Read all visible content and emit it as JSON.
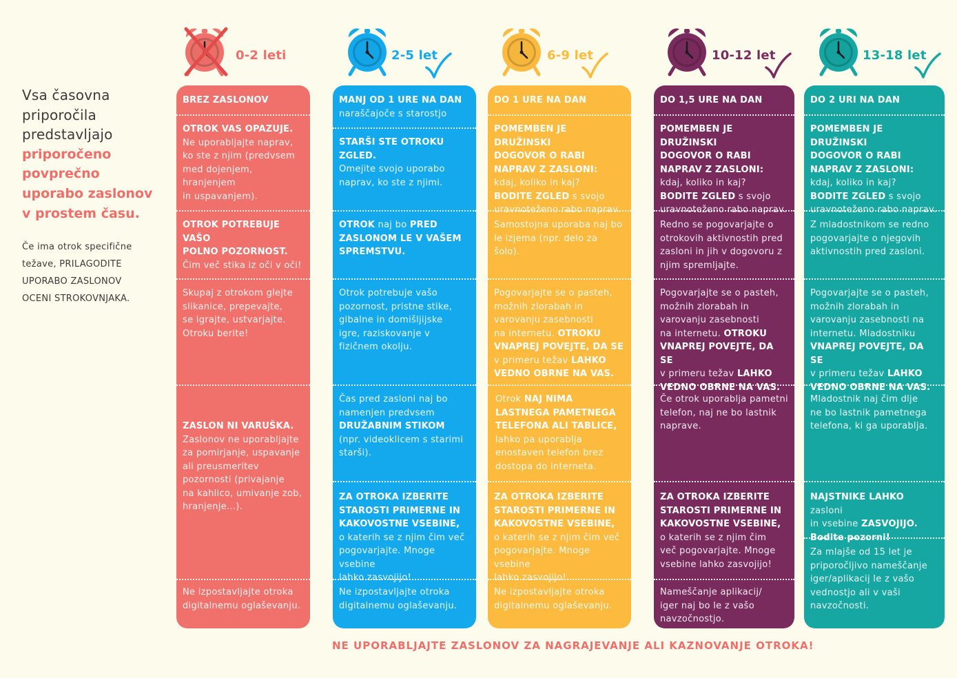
{
  "colors": {
    "red": "#f0716b",
    "blue": "#14a9ec",
    "yellow": "#fcbb3f",
    "purple": "#7a2b5e",
    "teal": "#16a7a2",
    "accent": "#ef6e6a"
  },
  "intro": {
    "lines": [
      "Vsa časovna",
      "priporočila",
      "predstavljajo"
    ],
    "highlight": [
      "priporočeno",
      "povprečno",
      "uporabo zaslonov",
      "v prostem času."
    ],
    "note": [
      "Če ima otrok specifične",
      "težave, PRILAGODITE",
      "UPORABO ZASLONOV",
      "OCENI STROKOVNJAKA."
    ]
  },
  "ages": [
    "0-2 leti",
    "2-5 let",
    "6-9 let",
    "10-12 let",
    "13-18 let"
  ],
  "icons": {
    "clock": "alarm-clock-icon",
    "check": "checkmark-icon",
    "cross": "cross-icon"
  },
  "columns": [
    {
      "sections": [
        {
          "lines": [
            {
              "b": "BREZ ZASLONOV"
            }
          ]
        },
        {
          "lines": [
            {
              "b": "OTROK VAS OPAZUJE."
            },
            {
              "t": "Ne uporabljajte naprav,"
            },
            {
              "t": "ko ste z njim (predvsem"
            },
            {
              "t": "med dojenjem, hranjenjem"
            },
            {
              "t": "in uspavanjem)."
            }
          ]
        },
        {
          "lines": [
            {
              "b": "OTROK POTREBUJE VAŠO"
            },
            {
              "b": "POLNO POZORNOST."
            },
            {
              "t": "Čim več stika iz oči v oči!"
            }
          ]
        },
        {
          "lines": [
            {
              "t": "Skupaj z otrokom glejte"
            },
            {
              "t": "slikanice, prepevajte,"
            },
            {
              "t": "se igrajte, ustvarjajte."
            },
            {
              "t": "Otroku berite!"
            }
          ]
        },
        {
          "lines": [
            {
              "b": "ZASLON NI VARUŠKA."
            },
            {
              "t": "Zaslonov ne uporabljajte"
            },
            {
              "t": "za pomirjanje, uspavanje"
            },
            {
              "t": "ali preusmeritev"
            },
            {
              "t": "pozornosti (privajanje"
            },
            {
              "t": "na kahlico, umivanje zob,"
            },
            {
              "t": "hranjenje...)."
            }
          ]
        },
        {
          "lines": [
            {
              "t": "Ne izpostavljajte otroka"
            },
            {
              "t": "digitalnemu oglaševanju."
            }
          ]
        }
      ]
    },
    {
      "sections": [
        {
          "lines": [
            {
              "b": "MANJ OD 1 URE NA DAN"
            },
            {
              "t": "naraščajoče s starostjo"
            }
          ]
        },
        {
          "lines": [
            {
              "b": "STARŠI STE OTROKU"
            },
            {
              "b": "ZGLED."
            },
            {
              "t": "Omejite svojo uporabo"
            },
            {
              "t": "naprav, ko ste z njimi."
            }
          ]
        },
        {
          "lines": [
            {
              "b": "OTROK",
              "t": " naj bo ",
              "b2": "PRED"
            },
            {
              "b": "ZASLONOM LE V VAŠEM"
            },
            {
              "b": "SPREMSTVU."
            }
          ]
        },
        {
          "lines": [
            {
              "t": "Otrok potrebuje vašo"
            },
            {
              "t": "pozornost, pristne stike,"
            },
            {
              "t": "gibalne in domišljijske"
            },
            {
              "t": "igre, raziskovanje v"
            },
            {
              "t": "fizičnem okolju."
            }
          ]
        },
        {
          "lines": [
            {
              "t": "Čas pred zasloni naj bo"
            },
            {
              "t": "namenjen predvsem"
            },
            {
              "b": "DRUŽABNIM STIKOM"
            },
            {
              "t": "(npr. videoklicem s starimi"
            },
            {
              "t": "starši)."
            }
          ]
        },
        {
          "lines": [
            {
              "b": "ZA OTROKA IZBERITE"
            },
            {
              "b": "STAROSTI PRIMERNE IN"
            },
            {
              "b": "KAKOVOSTNE VSEBINE,"
            },
            {
              "t": "o katerih se z njim čim več"
            },
            {
              "t": "pogovarjajte. Mnoge vsebine"
            },
            {
              "t": "lahko zasvojijo!"
            }
          ]
        },
        {
          "lines": [
            {
              "t": "Ne izpostavljajte otroka"
            },
            {
              "t": "digitalnemu oglaševanju."
            }
          ]
        }
      ]
    },
    {
      "sections": [
        {
          "lines": [
            {
              "b": "DO 1 URE NA DAN"
            }
          ]
        },
        {
          "lines": [
            {
              "b": "POMEMBEN JE DRUŽINSKI"
            },
            {
              "b": "DOGOVOR O RABI"
            },
            {
              "b": "NAPRAV Z ZASLONI:"
            },
            {
              "t": "kdaj, koliko in kaj?"
            },
            {
              "b": "BODITE ZGLED",
              "t": " s svojo"
            },
            {
              "t": "uravnoteženo rabo naprav."
            }
          ]
        },
        {
          "lines": [
            {
              "t": "Samostojna uporaba naj bo"
            },
            {
              "t": "le izjema (npr. delo za šolo)."
            }
          ]
        },
        {
          "lines": [
            {
              "t": "Pogovarjajte se o pasteh,"
            },
            {
              "t": "možnih zlorabah in"
            },
            {
              "t": "varovanju zasebnosti"
            },
            {
              "t": "na internetu. ",
              "b2": "OTROKU"
            },
            {
              "b": "VNAPREJ POVEJTE, DA SE"
            },
            {
              "t": "v primeru težav ",
              "b2": "LAHKO"
            },
            {
              "b": "VEDNO OBRNE NA VAS."
            }
          ]
        },
        {
          "lines": [
            {
              "t": "Otrok ",
              "b2": "NAJ NIMA"
            },
            {
              "b": "LASTNEGA PAMETNEGA"
            },
            {
              "b": "TELEFONA ALI TABLICE,"
            },
            {
              "t": "lahko pa uporablja"
            },
            {
              "t": "enostaven telefon brez"
            },
            {
              "t": "dostopa do interneta."
            }
          ]
        },
        {
          "lines": [
            {
              "b": "ZA OTROKA IZBERITE"
            },
            {
              "b": "STAROSTI PRIMERNE IN"
            },
            {
              "b": "KAKOVOSTNE VSEBINE,"
            },
            {
              "t": "o katerih se z njim čim več"
            },
            {
              "t": "pogovarjajte. Mnoge vsebine"
            },
            {
              "t": "lahko zasvojijo!"
            }
          ]
        },
        {
          "lines": [
            {
              "t": "Ne izpostavljajte otroka"
            },
            {
              "t": "digitalnemu oglaševanju."
            }
          ]
        }
      ]
    },
    {
      "sections": [
        {
          "lines": [
            {
              "b": "DO 1,5 URE NA DAN"
            }
          ]
        },
        {
          "lines": [
            {
              "b": "POMEMBEN JE DRUŽINSKI"
            },
            {
              "b": "DOGOVOR O RABI"
            },
            {
              "b": "NAPRAV Z ZASLONI:"
            },
            {
              "t": "kdaj, koliko in kaj?"
            },
            {
              "b": "BODITE ZGLED",
              "t": " s svojo"
            },
            {
              "t": "uravnoteženo rabo naprav."
            }
          ]
        },
        {
          "lines": [
            {
              "t": "Redno se pogovarjajte o"
            },
            {
              "t": "otrokovih aktivnostih pred"
            },
            {
              "t": "zasloni in jih v dogovoru z"
            },
            {
              "t": "njim spremljajte."
            }
          ]
        },
        {
          "lines": [
            {
              "t": "Pogovarjajte se o pasteh,"
            },
            {
              "t": "možnih zlorabah in"
            },
            {
              "t": "varovanju zasebnosti"
            },
            {
              "t": "na internetu. ",
              "b2": "OTROKU"
            },
            {
              "b": "VNAPREJ POVEJTE, DA SE"
            },
            {
              "t": "v primeru težav ",
              "b2": "LAHKO"
            },
            {
              "b": "VEDNO OBRNE NA VAS."
            }
          ]
        },
        {
          "lines": [
            {
              "t": "Če otrok uporablja pametni"
            },
            {
              "t": "telefon, naj ne bo lastnik"
            },
            {
              "t": "naprave."
            }
          ]
        },
        {
          "lines": [
            {
              "b": "ZA OTROKA IZBERITE"
            },
            {
              "b": "STAROSTI PRIMERNE IN"
            },
            {
              "b": "KAKOVOSTNE VSEBINE,"
            },
            {
              "t": "o katerih se z njim čim"
            },
            {
              "t": "več pogovarjajte. Mnoge"
            },
            {
              "t": "vsebine lahko zasvojijo!"
            }
          ]
        },
        {
          "lines": [
            {
              "t": "Nameščanje aplikacij/"
            },
            {
              "t": "iger naj bo le z vašo"
            },
            {
              "t": "navzočnostjo."
            }
          ]
        }
      ]
    },
    {
      "sections": [
        {
          "lines": [
            {
              "b": "DO 2 URI NA DAN"
            }
          ]
        },
        {
          "lines": [
            {
              "b": "POMEMBEN JE DRUŽINSKI"
            },
            {
              "b": "DOGOVOR O RABI"
            },
            {
              "b": "NAPRAV Z ZASLONI:"
            },
            {
              "t": "kdaj, koliko in kaj?"
            },
            {
              "b": "BODITE ZGLED",
              "t": " s svojo"
            },
            {
              "t": "uravnoteženo rabo naprav."
            }
          ]
        },
        {
          "lines": [
            {
              "t": "Z mladostnikom se redno"
            },
            {
              "t": "pogovarjajte o njegovih"
            },
            {
              "t": "aktivnostih pred zasloni."
            }
          ]
        },
        {
          "lines": [
            {
              "t": "Pogovarjajte se o pasteh,"
            },
            {
              "t": "možnih zlorabah in"
            },
            {
              "t": "varovanju zasebnosti na"
            },
            {
              "t": "internetu. Mladostniku"
            },
            {
              "b": "VNAPREJ POVEJTE, DA SE"
            },
            {
              "t": "v primeru težav ",
              "b2": "LAHKO"
            },
            {
              "b": "VEDNO OBRNE NA VAS."
            }
          ]
        },
        {
          "lines": [
            {
              "t": "Mladostnik naj čim dlje"
            },
            {
              "t": "ne bo lastnik pametnega"
            },
            {
              "t": "telefona, ki ga uporablja."
            }
          ]
        },
        {
          "lines": [
            {
              "b": "NAJSTNIKE LAHKO",
              "t": " zasloni"
            },
            {
              "t": "in vsebine ",
              "b2": "ZASVOJIJO."
            },
            {
              "b": "Bodite pozorni!"
            }
          ]
        },
        {
          "lines": [
            {
              "t": "Za mlajše od 15 let je"
            },
            {
              "t": "priporočljivo nameščanje"
            },
            {
              "t": "iger/aplikacij le z vašo"
            },
            {
              "t": "vednostjo ali v vaši"
            },
            {
              "t": "navzočnosti."
            }
          ]
        }
      ]
    }
  ],
  "footer": "NE UPORABLJAJTE ZASLONOV ZA NAGRAJEVANJE ALI KAZNOVANJE OTROKA!"
}
